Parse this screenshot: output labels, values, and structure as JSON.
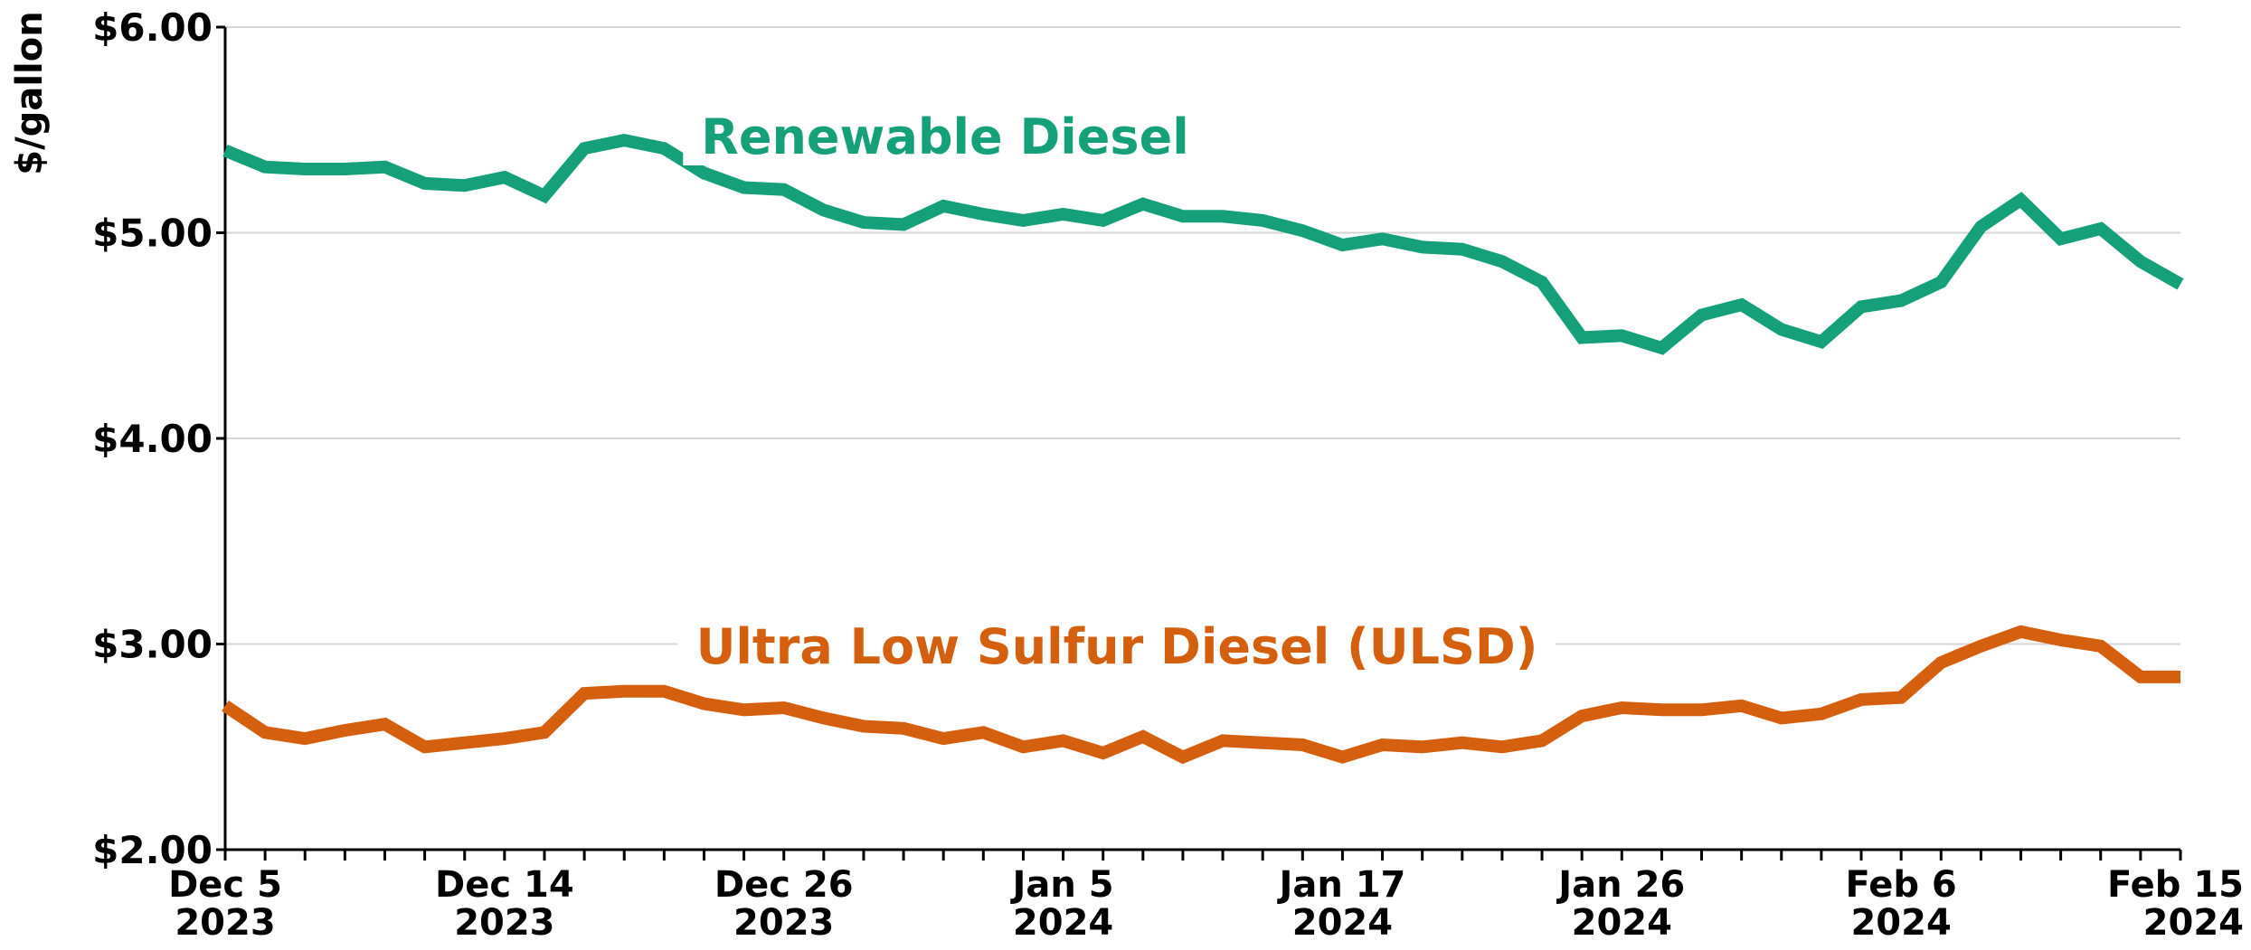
{
  "chart_data": {
    "type": "line",
    "ylabel": "$/gallon",
    "categories": [
      [
        "Dec 5",
        "2023"
      ],
      null,
      null,
      null,
      null,
      null,
      null,
      [
        "Dec 14",
        "2023"
      ],
      null,
      null,
      null,
      null,
      null,
      null,
      [
        "Dec 26",
        "2023"
      ],
      null,
      null,
      null,
      null,
      null,
      null,
      [
        "Jan 5",
        "2024"
      ],
      null,
      null,
      null,
      null,
      null,
      null,
      [
        "Jan 17",
        "2024"
      ],
      null,
      null,
      null,
      null,
      null,
      null,
      [
        "Jan 26",
        "2024"
      ],
      null,
      null,
      null,
      null,
      null,
      null,
      [
        "Feb 6",
        "2024"
      ],
      null,
      null,
      null,
      null,
      null,
      null,
      [
        "Feb 15",
        "2024"
      ]
    ],
    "series": [
      {
        "name": "Renewable Diesel",
        "color": "#16a07a",
        "values": [
          5.4,
          5.32,
          5.31,
          5.31,
          5.32,
          5.24,
          5.23,
          5.27,
          5.18,
          5.41,
          5.45,
          5.41,
          5.29,
          5.22,
          5.21,
          5.11,
          5.05,
          5.04,
          5.13,
          5.09,
          5.06,
          5.09,
          5.06,
          5.14,
          5.08,
          5.08,
          5.06,
          5.01,
          4.94,
          4.97,
          4.93,
          4.92,
          4.86,
          4.76,
          4.49,
          4.5,
          4.44,
          4.6,
          4.65,
          4.53,
          4.47,
          4.64,
          4.67,
          4.76,
          5.03,
          5.16,
          4.97,
          5.02,
          4.86,
          4.75
        ]
      },
      {
        "name": "Ultra Low Sulfur Diesel (ULSD)",
        "color": "#d45f0e",
        "values": [
          2.7,
          2.57,
          2.54,
          2.58,
          2.61,
          2.5,
          2.52,
          2.54,
          2.57,
          2.76,
          2.77,
          2.77,
          2.71,
          2.68,
          2.69,
          2.64,
          2.6,
          2.59,
          2.54,
          2.57,
          2.5,
          2.53,
          2.47,
          2.55,
          2.45,
          2.53,
          2.52,
          2.51,
          2.45,
          2.51,
          2.5,
          2.52,
          2.5,
          2.53,
          2.65,
          2.69,
          2.68,
          2.68,
          2.7,
          2.64,
          2.66,
          2.73,
          2.74,
          2.91,
          2.99,
          3.06,
          3.02,
          2.99,
          2.84,
          2.84
        ]
      }
    ],
    "ylim": [
      2,
      6
    ],
    "yticks": [
      {
        "value": 2,
        "label": "$2.00"
      },
      {
        "value": 3,
        "label": "$3.00"
      },
      {
        "value": 4,
        "label": "$4.00"
      },
      {
        "value": 5,
        "label": "$5.00"
      },
      {
        "value": 6,
        "label": "$6.00"
      }
    ],
    "grid": true
  }
}
